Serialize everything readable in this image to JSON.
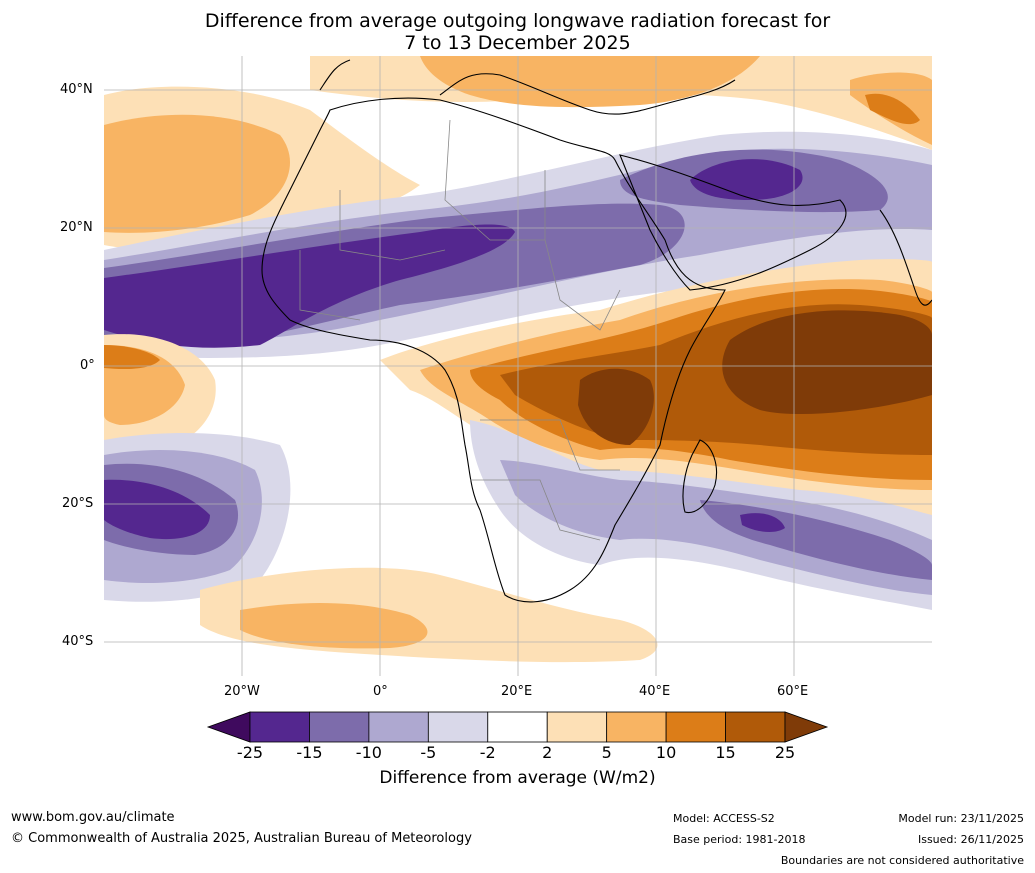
{
  "title_line1": "Difference from average outgoing longwave radiation forecast for",
  "title_line2": "7 to 13 December 2025",
  "lat_ticks": [
    "40°N",
    "20°N",
    "0°",
    "20°S",
    "40°S"
  ],
  "lon_ticks": [
    "20°W",
    "0°",
    "20°E",
    "40°E",
    "60°E"
  ],
  "colorbar": {
    "labels": [
      "-25",
      "-15",
      "-10",
      "-5",
      "-2",
      "2",
      "5",
      "10",
      "15",
      "25"
    ],
    "colors": [
      "#3f0a5e",
      "#54278f",
      "#7d6cab",
      "#aea8d0",
      "#d9d8e9",
      "#ffffff",
      "#fde0b6",
      "#f8b463",
      "#dc7d18",
      "#b05a09",
      "#7f3b08"
    ],
    "title": "Difference from average (W/m2)"
  },
  "footer": {
    "url": "www.bom.gov.au/climate",
    "copyright": "© Commonwealth of Australia 2025, Australian Bureau of Meteorology",
    "model": "Model: ACCESS-S2",
    "base_period": "Base period: 1981-2018",
    "model_run": "Model run: 23/11/2025",
    "issued": "Issued: 26/11/2025",
    "disclaimer": "Boundaries are not considered authoritative"
  }
}
